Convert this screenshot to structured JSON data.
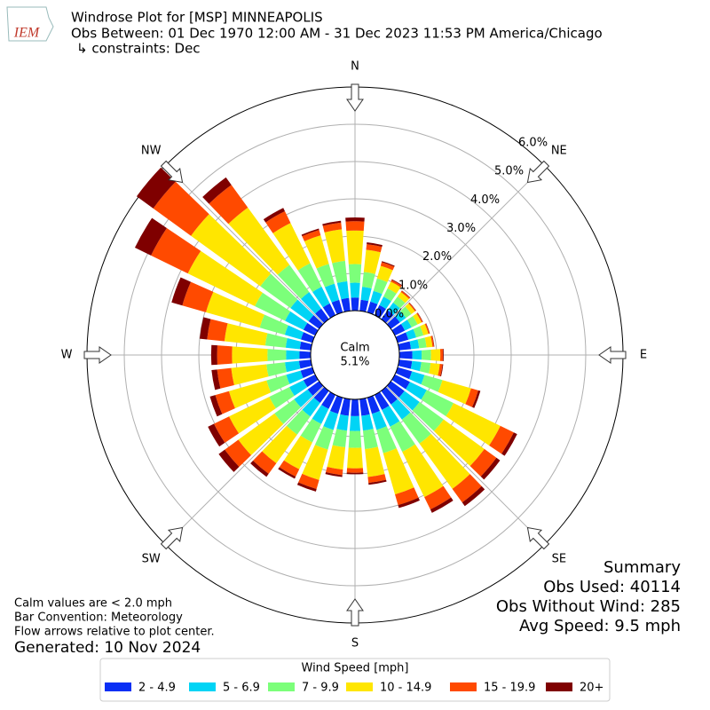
{
  "chart_data": {
    "type": "windrose",
    "logo": "IEM",
    "title": [
      "Windrose Plot for [MSP] MINNEAPOLIS",
      "Obs Between: 01 Dec 1970 12:00 AM - 31 Dec 2023 11:53 PM America/Chicago",
      "↳ constraints: Dec"
    ],
    "compass_labels": [
      "N",
      "NE",
      "E",
      "SE",
      "S",
      "SW",
      "W",
      "NW"
    ],
    "calm": {
      "label": "Calm",
      "value": 5.1,
      "value_label": "5.1%"
    },
    "rlim": [
      0,
      6
    ],
    "rticks": [
      {
        "value": 0,
        "label": "0.0%"
      },
      {
        "value": 1,
        "label": "1.0%"
      },
      {
        "value": 2,
        "label": "2.0%"
      },
      {
        "value": 3,
        "label": "3.0%"
      },
      {
        "value": 4,
        "label": "4.0%"
      },
      {
        "value": 5,
        "label": "5.0%"
      },
      {
        "value": 6,
        "label": "6.0%"
      }
    ],
    "legend_title": "Wind Speed [mph]",
    "series": [
      {
        "name": "2 - 4.9",
        "color": "#0a2ff5",
        "values": [
          0.35,
          0.3,
          0.3,
          0.3,
          0.3,
          0.3,
          0.3,
          0.3,
          0.32,
          0.35,
          0.35,
          0.4,
          0.45,
          0.45,
          0.45,
          0.45,
          0.45,
          0.45,
          0.45,
          0.45,
          0.45,
          0.42,
          0.4,
          0.38,
          0.35,
          0.33,
          0.32,
          0.3,
          0.3,
          0.32,
          0.35,
          0.35,
          0.35,
          0.35,
          0.35,
          0.35
        ]
      },
      {
        "name": "5 - 6.9",
        "color": "#00d4f5",
        "values": [
          0.4,
          0.35,
          0.3,
          0.25,
          0.25,
          0.2,
          0.2,
          0.22,
          0.22,
          0.25,
          0.25,
          0.35,
          0.5,
          0.5,
          0.5,
          0.5,
          0.45,
          0.4,
          0.4,
          0.4,
          0.45,
          0.45,
          0.45,
          0.45,
          0.42,
          0.4,
          0.38,
          0.36,
          0.38,
          0.45,
          0.55,
          0.6,
          0.55,
          0.5,
          0.45,
          0.45
        ]
      },
      {
        "name": "7 - 9.9",
        "color": "#7cff7a",
        "values": [
          0.5,
          0.4,
          0.35,
          0.25,
          0.2,
          0.18,
          0.18,
          0.2,
          0.2,
          0.25,
          0.25,
          0.5,
          0.8,
          0.8,
          0.8,
          0.75,
          0.65,
          0.5,
          0.45,
          0.45,
          0.55,
          0.55,
          0.6,
          0.65,
          0.6,
          0.55,
          0.5,
          0.5,
          0.55,
          0.7,
          0.9,
          1.0,
          0.9,
          0.7,
          0.55,
          0.55
        ]
      },
      {
        "name": "10 - 14.9",
        "color": "#ffe600",
        "values": [
          0.9,
          0.6,
          0.35,
          0.2,
          0.15,
          0.12,
          0.12,
          0.14,
          0.16,
          0.25,
          0.25,
          0.8,
          1.4,
          1.35,
          1.5,
          1.35,
          1.15,
          0.75,
          0.55,
          0.6,
          0.85,
          0.8,
          0.95,
          1.2,
          1.2,
          1.05,
          0.95,
          0.95,
          1.1,
          1.5,
          2.0,
          2.3,
          1.9,
          1.2,
          0.8,
          0.85
        ]
      },
      {
        "name": "15 - 19.9",
        "color": "#ff4a00",
        "values": [
          0.25,
          0.15,
          0.1,
          0.05,
          0.04,
          0.03,
          0.03,
          0.03,
          0.04,
          0.07,
          0.07,
          0.2,
          0.4,
          0.4,
          0.45,
          0.37,
          0.3,
          0.16,
          0.12,
          0.15,
          0.25,
          0.22,
          0.35,
          0.45,
          0.45,
          0.38,
          0.38,
          0.4,
          0.47,
          0.66,
          1.1,
          1.25,
          0.75,
          0.35,
          0.15,
          0.18
        ]
      },
      {
        "name": "20+",
        "color": "#7f0000",
        "values": [
          0.1,
          0.05,
          0.03,
          0.02,
          0.01,
          0.01,
          0.01,
          0.01,
          0.01,
          0.02,
          0.02,
          0.06,
          0.1,
          0.12,
          0.12,
          0.1,
          0.08,
          0.05,
          0.04,
          0.05,
          0.07,
          0.06,
          0.1,
          0.2,
          0.18,
          0.15,
          0.15,
          0.16,
          0.2,
          0.3,
          0.48,
          0.55,
          0.25,
          0.1,
          0.04,
          0.05
        ]
      }
    ],
    "notes": [
      "Calm values are < 2.0 mph",
      "Bar Convention: Meteorology",
      "Flow arrows relative to plot center."
    ],
    "generated": "Generated: 10 Nov 2024",
    "summary": [
      "Summary",
      "Obs Used: 40114",
      "Obs Without Wind: 285",
      "Avg Speed: 9.5 mph"
    ]
  }
}
